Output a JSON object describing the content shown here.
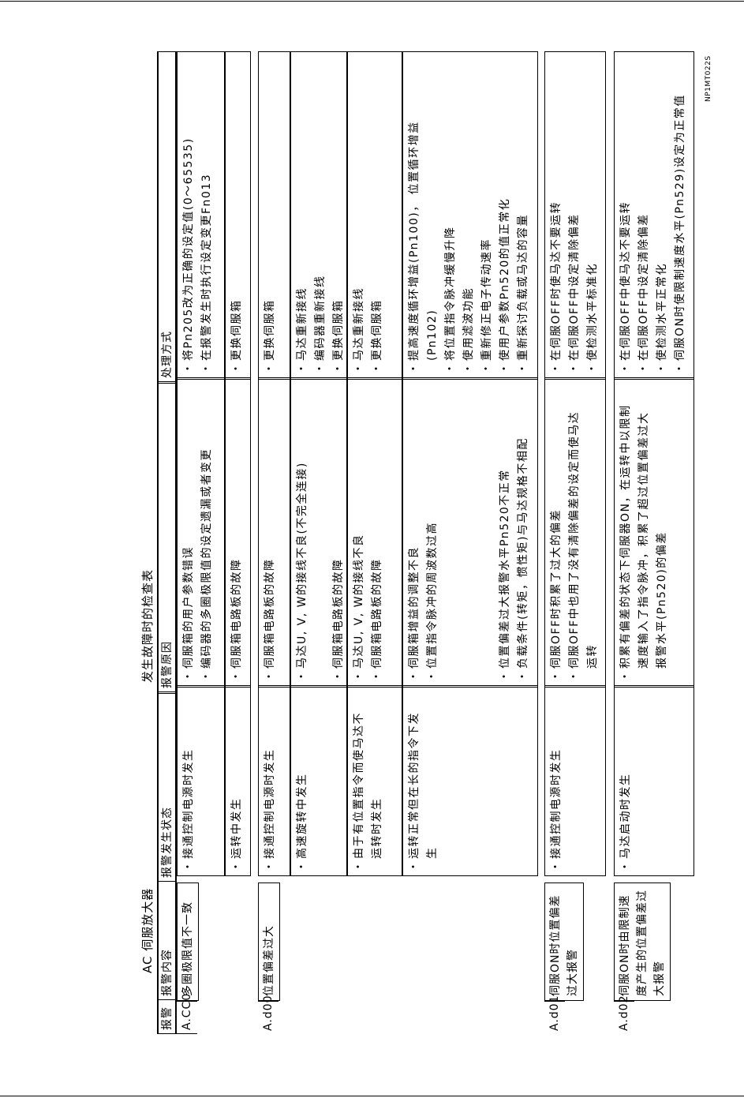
{
  "header": {
    "left_title": "AC 伺服放大器",
    "center_title": "发生故障时的检查表",
    "doc_code": "NP1MT022S"
  },
  "columns": {
    "code": "报警",
    "content": "报警内容",
    "status": "报警发生状态",
    "cause": "报警原因",
    "measure": "处理方式"
  },
  "alarms": [
    {
      "code": "A.CC0",
      "content": "多圈极限值不一致",
      "rows": [
        {
          "status": [
            "接通控制电源时发生"
          ],
          "causes": [
            "伺服箱的用户参数错误",
            "编码器的多圈极限值的设定遗漏或者变更"
          ],
          "measures": [
            "将Pn205改为正确的设定值(0～65535)",
            "在报警发生时执行设定变更Fn013"
          ]
        },
        {
          "status": [
            "运转中发生"
          ],
          "causes": [
            "伺服箱电路板的故障"
          ],
          "measures": [
            "更换伺服箱"
          ]
        }
      ]
    },
    {
      "code": "A.d00",
      "content": "位置偏差过大",
      "rows": [
        {
          "status": [
            "接通控制电源时发生"
          ],
          "causes": [
            "伺服箱电路板的故障"
          ],
          "measures": [
            "更换伺服箱"
          ]
        },
        {
          "status": [
            "高速旋转中发生"
          ],
          "causes": [
            "马达U, V, W的接线不良(不完全连接)",
            "伺服箱电路板的故障"
          ],
          "measures": [
            "马达重新接线",
            "编码器重新接线",
            "更换伺服箱"
          ]
        },
        {
          "status": [
            "由于有位置指令而使马达不运转时发生"
          ],
          "causes": [
            "马达U, V, W的接线不良",
            "伺服箱电路板的故障"
          ],
          "measures": [
            "马达重新接线",
            "更换伺服箱"
          ]
        },
        {
          "status": [
            "运转正常但在长的指令下发生"
          ],
          "causes": [
            "伺服箱增益的调整不良",
            "位置指令脉冲的周波数过高",
            "位置偏差过大报警水平Pn520不正常",
            "负载条件(转矩，惯性矩)与马达规格不相配"
          ],
          "measures": [
            "提高速度循环增益(Pn100)， 位置循环增益(Pn102)",
            "将位置指令脉冲缓慢升降",
            "使用滤波功能",
            "重新修正电子传动速率",
            "使用户参数Pn520的值正常化",
            "重新探讨负载或马达的容量"
          ]
        }
      ]
    },
    {
      "code": "A.d01",
      "content": "伺服ON时位置偏差过大报警",
      "rows": [
        {
          "status": [
            "接通控制电源时发生"
          ],
          "causes": [
            "伺服OFF时积累了过大的偏差",
            "伺服OFF中也用了没有清除偏差的设定而使马达运转"
          ],
          "measures": [
            "在伺服OFF时使马达不要运转",
            "在伺服OFF中设定清除偏差",
            "使检测水平标准化"
          ]
        }
      ]
    },
    {
      "code": "A.d02",
      "content": "伺服ON时由限制速度产生的位置偏差过大报警",
      "rows": [
        {
          "status": [
            "马达启动时发生"
          ],
          "causes": [
            "积累有偏差的状态下伺服器ON，在运转中以限制速度输入了指令脉冲，积累了超过位置偏差过大报警水平(Pn520)的偏差"
          ],
          "measures": [
            "在伺服OFF中使马达不要运转",
            "在伺服OFF中设定清除偏差",
            "使检测水平正常化",
            "伺服ON时使限制速度水平(Pn529)设定为正常值"
          ]
        }
      ]
    }
  ]
}
